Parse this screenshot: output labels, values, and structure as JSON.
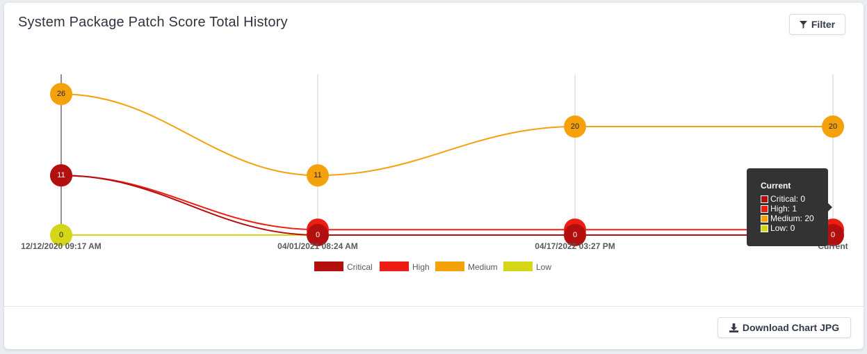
{
  "card": {
    "title": "System Package Patch Score Total History",
    "filter_label": "Filter",
    "download_label": "Download Chart JPG"
  },
  "icons": {
    "filter": "filter-icon",
    "download": "download-icon"
  },
  "chart_data": {
    "type": "line",
    "categories": [
      "12/12/2020 09:17 AM",
      "04/01/2021 08:24 AM",
      "04/17/2022 03:27 PM",
      "Current"
    ],
    "series": [
      {
        "name": "Critical",
        "color": "#b30f0f",
        "values": [
          11,
          0,
          0,
          0
        ]
      },
      {
        "name": "High",
        "color": "#ee1d14",
        "values": [
          11,
          1,
          1,
          1
        ]
      },
      {
        "name": "Medium",
        "color": "#f5a10b",
        "values": [
          26,
          11,
          20,
          20
        ]
      },
      {
        "name": "Low",
        "color": "#d6d619",
        "values": [
          0,
          0,
          0,
          0
        ]
      }
    ],
    "legend_position": "bottom-center",
    "grid": "vertical",
    "point_labels": [
      {
        "series": "Medium",
        "index": 0,
        "text": "26"
      },
      {
        "series": "Medium",
        "index": 1,
        "text": "11"
      },
      {
        "series": "Medium",
        "index": 2,
        "text": "20"
      },
      {
        "series": "Medium",
        "index": 3,
        "text": "20"
      },
      {
        "series": "Critical",
        "index": 0,
        "text": "11"
      },
      {
        "series": "Low",
        "index": 0,
        "text": "0"
      },
      {
        "series": "Critical",
        "index": 1,
        "text": "0"
      },
      {
        "series": "Critical",
        "index": 2,
        "text": "0"
      },
      {
        "series": "Critical",
        "index": 3,
        "text": "0"
      }
    ]
  },
  "tooltip": {
    "title": "Current",
    "rows": [
      {
        "label": "Critical: 0",
        "color": "#b30f0f"
      },
      {
        "label": "High: 1",
        "color": "#ee1d14"
      },
      {
        "label": "Medium: 20",
        "color": "#f5a10b"
      },
      {
        "label": "Low: 0",
        "color": "#d6d619"
      }
    ]
  }
}
